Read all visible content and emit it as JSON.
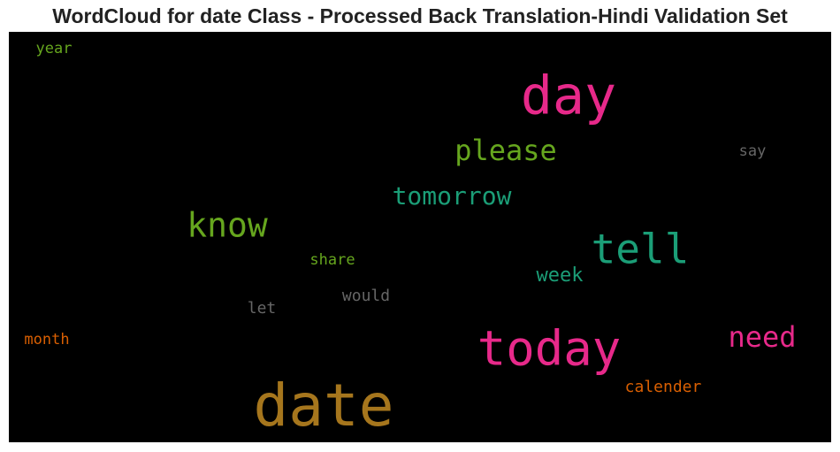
{
  "chart_data": {
    "type": "wordcloud",
    "title": "WordCloud for date Class - Processed Back Translation-Hindi Validation Set",
    "background": "#000000",
    "words": [
      {
        "text": "year",
        "color": "#66a61e"
      },
      {
        "text": "day",
        "color": "#e7298a"
      },
      {
        "text": "please",
        "color": "#66a61e"
      },
      {
        "text": "say",
        "color": "#666666"
      },
      {
        "text": "tomorrow",
        "color": "#1b9e77"
      },
      {
        "text": "know",
        "color": "#66a61e"
      },
      {
        "text": "tell",
        "color": "#1b9e77"
      },
      {
        "text": "share",
        "color": "#66a61e"
      },
      {
        "text": "week",
        "color": "#1b9e77"
      },
      {
        "text": "would",
        "color": "#666666"
      },
      {
        "text": "let",
        "color": "#666666"
      },
      {
        "text": "month",
        "color": "#d95f02"
      },
      {
        "text": "need",
        "color": "#e7298a"
      },
      {
        "text": "today",
        "color": "#e7298a"
      },
      {
        "text": "calender",
        "color": "#d95f02"
      },
      {
        "text": "date",
        "color": "#a6761d"
      }
    ]
  }
}
